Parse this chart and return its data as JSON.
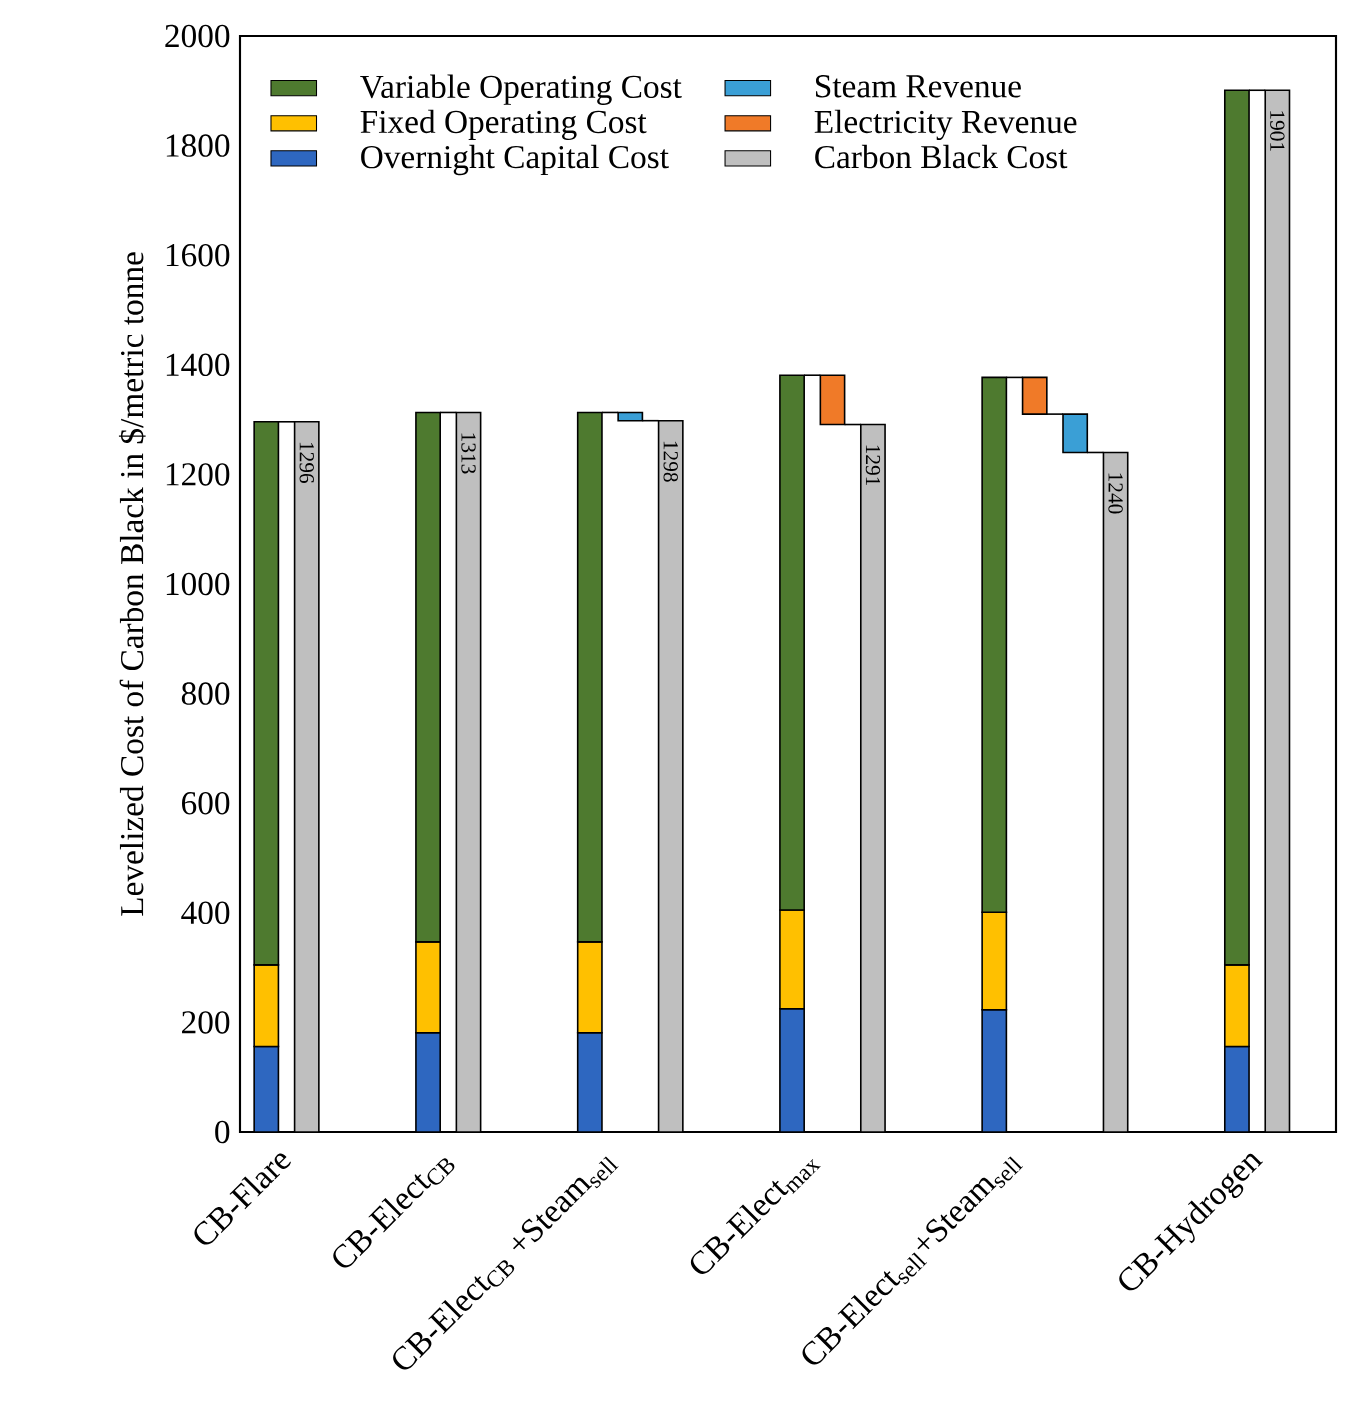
{
  "chart_data": {
    "type": "bar",
    "legend": "top left",
    "ylabel": "Levelized Cost of Carbon Black in $/metric tonne",
    "categories": [
      "CB-Flare",
      "CB-Elect$_{CB}$",
      "CB-Elect$_{CB}$ +Steam$_{sell}$",
      "CB-Elect$_{max}$",
      "CB-Elect$_{sell}$+Steam$_{sell}$",
      "CB-Hydrogen"
    ],
    "ylim": [
      0,
      2000
    ],
    "yticks": [
      0,
      200,
      400,
      600,
      800,
      1000,
      1200,
      1400,
      1600,
      1800,
      2000
    ],
    "series": [
      {
        "name": "Overnight Capital Cost",
        "color": "#2e67c0",
        "base": [
          0,
          0,
          0,
          0,
          0,
          0
        ],
        "values": [
          156,
          181,
          181,
          225,
          223,
          156
        ]
      },
      {
        "name": "Fixed  Operating Cost",
        "color": "#ffc000",
        "base": [
          156,
          181,
          181,
          225,
          223,
          156
        ],
        "values": [
          149,
          166,
          166,
          180,
          178,
          149
        ]
      },
      {
        "name": "Variable Operating Cost",
        "color": "#4e7a2f",
        "base": [
          305,
          347,
          347,
          405,
          401,
          305
        ],
        "values": [
          991,
          966,
          966,
          976,
          976,
          1596
        ]
      },
      {
        "name": "Electricity Revenue",
        "color": "#f07a28",
        "base": [
          null,
          null,
          null,
          1381,
          1377,
          null
        ],
        "values": [
          null,
          null,
          null,
          -90,
          -67,
          null
        ]
      },
      {
        "name": "Steam Revenue",
        "color": "#3a9fd6",
        "base": [
          null,
          null,
          1313,
          null,
          1310,
          null
        ],
        "values": [
          null,
          null,
          -15,
          null,
          -70,
          null
        ]
      },
      {
        "name": "Carbon Black Cost",
        "color": "#bfbfbf",
        "base": [
          0,
          0,
          0,
          0,
          0,
          0
        ],
        "values": [
          1296,
          1313,
          1298,
          1291,
          1240,
          1901
        ],
        "value_labels": [
          "1296",
          "1313",
          "1298",
          "1291",
          "1240",
          "1901"
        ]
      }
    ]
  }
}
